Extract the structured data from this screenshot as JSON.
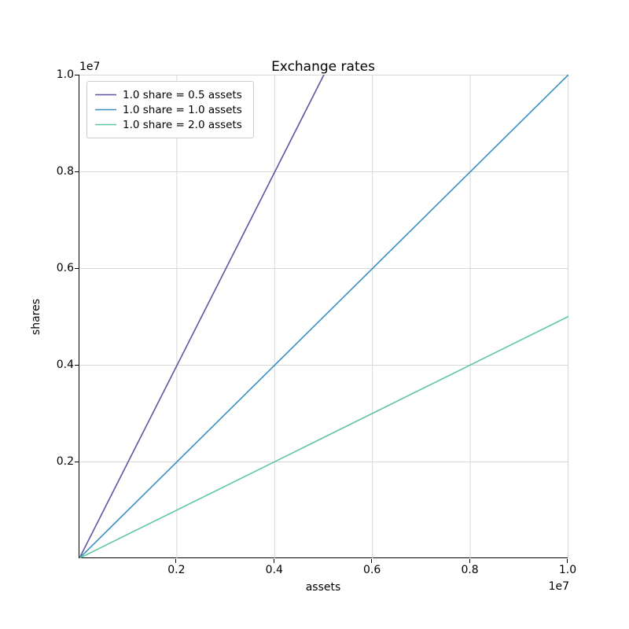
{
  "chart_data": {
    "type": "line",
    "title": "Exchange rates",
    "xlabel": "assets",
    "ylabel": "shares",
    "axis_offset_text": "1e7",
    "xlim": [
      0,
      10000000
    ],
    "ylim": [
      0,
      10000000
    ],
    "grid": true,
    "grid_color": "#d8d8d8",
    "spine_color": "#000000",
    "legend_position": "upper left",
    "xticks": [
      {
        "value": 2000000,
        "label": "0.2"
      },
      {
        "value": 4000000,
        "label": "0.4"
      },
      {
        "value": 6000000,
        "label": "0.6"
      },
      {
        "value": 8000000,
        "label": "0.8"
      },
      {
        "value": 10000000,
        "label": "1.0"
      }
    ],
    "yticks": [
      {
        "value": 2000000,
        "label": "0.2"
      },
      {
        "value": 4000000,
        "label": "0.4"
      },
      {
        "value": 6000000,
        "label": "0.6"
      },
      {
        "value": 8000000,
        "label": "0.8"
      },
      {
        "value": 10000000,
        "label": "1.0"
      }
    ],
    "series": [
      {
        "name": "1.0 share = 0.5 assets",
        "color": "#5d55a4",
        "assets_per_share": 0.5,
        "shares_per_asset": 2.0,
        "points": [
          [
            0,
            0
          ],
          [
            5000000,
            10000000
          ]
        ]
      },
      {
        "name": "1.0 share = 1.0 assets",
        "color": "#3b8ec4",
        "assets_per_share": 1.0,
        "shares_per_asset": 1.0,
        "points": [
          [
            0,
            0
          ],
          [
            10000000,
            10000000
          ]
        ]
      },
      {
        "name": "1.0 share = 2.0 assets",
        "color": "#5fc79e",
        "assets_per_share": 2.0,
        "shares_per_asset": 0.5,
        "points": [
          [
            0,
            0
          ],
          [
            10000000,
            5000000
          ]
        ]
      }
    ]
  }
}
